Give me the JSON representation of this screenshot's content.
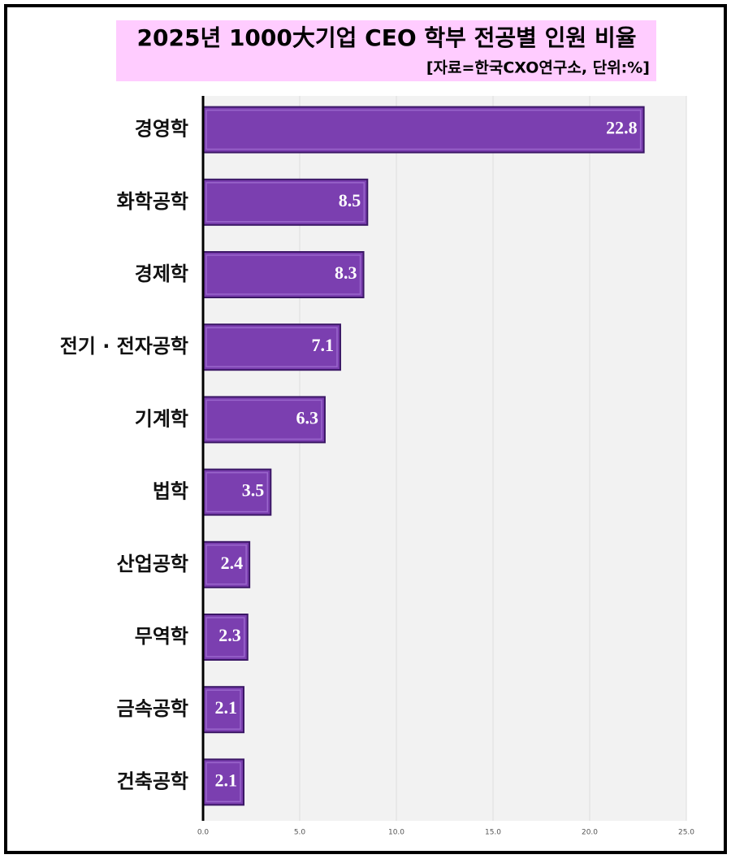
{
  "chart_data": {
    "type": "bar",
    "orientation": "horizontal",
    "title": "2025년 1000大기업 CEO 학부 전공별 인원 비율",
    "subtitle": "[자료=한국CXO연구소, 단위:%]",
    "categories": [
      "경영학",
      "화학공학",
      "경제학",
      "전기 · 전자공학",
      "기계학",
      "법학",
      "산업공학",
      "무역학",
      "금속공학",
      "건축공학"
    ],
    "values": [
      22.8,
      8.5,
      8.3,
      7.1,
      6.3,
      3.5,
      2.4,
      2.3,
      2.1,
      2.1
    ],
    "color": "#7b3fb0",
    "xlim": [
      0,
      25
    ],
    "xticks": [
      {
        "value": 0,
        "label": "0.0"
      },
      {
        "value": 5,
        "label": "5.0"
      },
      {
        "value": 10,
        "label": "10.0"
      },
      {
        "value": 15,
        "label": "15.0"
      },
      {
        "value": 20,
        "label": "20.0"
      },
      {
        "value": 25,
        "label": "25.0"
      }
    ],
    "grid": true
  }
}
